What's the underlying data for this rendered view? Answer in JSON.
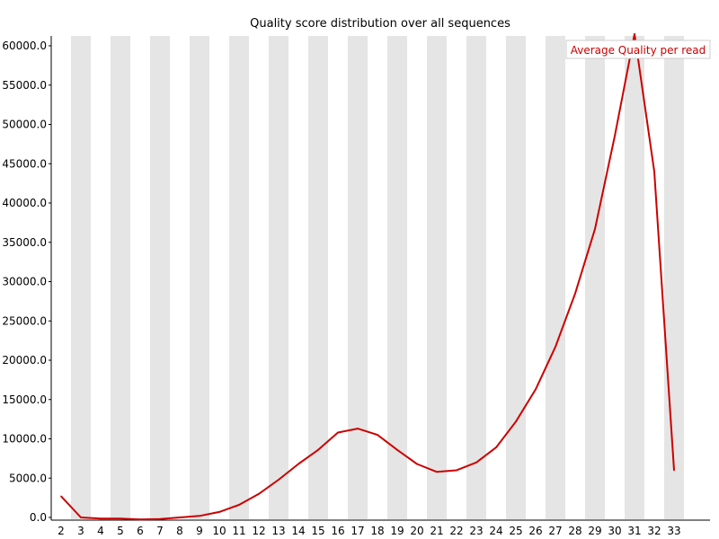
{
  "chart_data": {
    "type": "line",
    "title": "Quality score distribution over all sequences",
    "xlabel": "",
    "ylabel": "",
    "x": [
      2,
      3,
      4,
      5,
      6,
      7,
      8,
      9,
      10,
      11,
      12,
      13,
      14,
      15,
      16,
      17,
      18,
      19,
      20,
      21,
      22,
      23,
      24,
      25,
      26,
      27,
      28,
      29,
      30,
      31,
      32,
      33
    ],
    "series": [
      {
        "name": "Average Quality per read",
        "color": "#cc0000",
        "values": [
          2700,
          0,
          -150,
          -150,
          -250,
          -200,
          0,
          200,
          700,
          1600,
          3000,
          4800,
          6800,
          8600,
          10800,
          11300,
          10500,
          8600,
          6800,
          5800,
          6000,
          7000,
          8900,
          12200,
          16300,
          21700,
          28500,
          36700,
          48500,
          61500,
          44000,
          6000
        ]
      }
    ],
    "ylim": [
      0,
      61000
    ],
    "y_ticks": [
      "0.0",
      "5000.0",
      "10000.0",
      "15000.0",
      "20000.0",
      "25000.0",
      "30000.0",
      "35000.0",
      "40000.0",
      "45000.0",
      "50000.0",
      "55000.0",
      "60000.0"
    ],
    "x_tick_labels": [
      "2",
      "3",
      "4",
      "5",
      "6",
      "7",
      "8",
      "9",
      "10",
      "11",
      "12",
      "13",
      "14",
      "15",
      "16",
      "17",
      "18",
      "19",
      "20",
      "21",
      "22",
      "23",
      "24",
      "25",
      "26",
      "27",
      "28",
      "29",
      "30",
      "31",
      "32",
      "33"
    ],
    "legend": {
      "label": "Average Quality per read",
      "placement": "top-right"
    },
    "band_color": "#e5e5e5",
    "grid": false
  }
}
